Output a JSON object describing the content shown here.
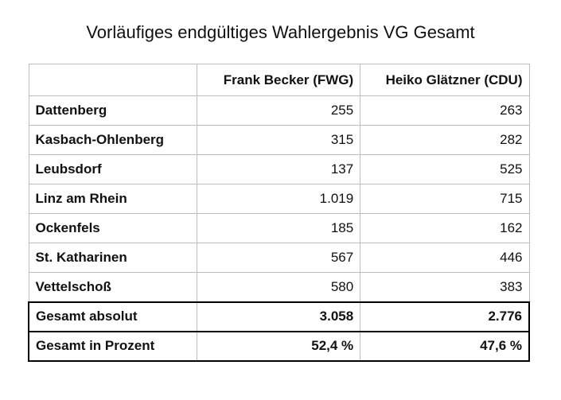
{
  "chart_data": {
    "type": "table",
    "title": "Vorläufiges endgültiges Wahlergebnis VG Gesamt",
    "columns": [
      "",
      "Frank Becker (FWG)",
      "Heiko Glätzner (CDU)"
    ],
    "rows": [
      {
        "name": "Dattenberg",
        "becker": "255",
        "glaetzner": "263"
      },
      {
        "name": "Kasbach-Ohlenberg",
        "becker": "315",
        "glaetzner": "282"
      },
      {
        "name": "Leubsdorf",
        "becker": "137",
        "glaetzner": "525"
      },
      {
        "name": "Linz am Rhein",
        "becker": "1.019",
        "glaetzner": "715"
      },
      {
        "name": "Ockenfels",
        "becker": "185",
        "glaetzner": "162"
      },
      {
        "name": "St. Katharinen",
        "becker": "567",
        "glaetzner": "446"
      },
      {
        "name": "Vettelschoß",
        "becker": "580",
        "glaetzner": "383"
      }
    ],
    "totals": [
      {
        "name": "Gesamt absolut",
        "becker": "3.058",
        "glaetzner": "2.776"
      },
      {
        "name": "Gesamt in Prozent",
        "becker": "52,4 %",
        "glaetzner": "47,6 %"
      }
    ]
  }
}
